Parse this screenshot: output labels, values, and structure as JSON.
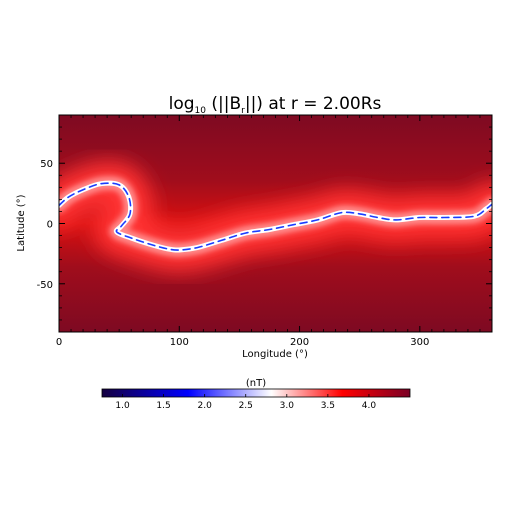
{
  "chart_data": {
    "type": "heatmap",
    "title_main": "log",
    "title_sub": "10",
    "title_open": " (||B",
    "title_r": "r",
    "title_rest": "||) at r = 2.00Rs",
    "xlabel": "Longitude (°)",
    "ylabel": "Latitude (°)",
    "xlim": [
      0,
      360
    ],
    "ylim": [
      -90,
      90
    ],
    "x_ticks": [
      0,
      100,
      200,
      300
    ],
    "y_ticks": [
      -50,
      0,
      50
    ],
    "neutral_line": [
      {
        "lon": 0,
        "lat": 15
      },
      {
        "lon": 8,
        "lat": 22
      },
      {
        "lon": 20,
        "lat": 28
      },
      {
        "lon": 35,
        "lat": 33
      },
      {
        "lon": 50,
        "lat": 32
      },
      {
        "lon": 58,
        "lat": 22
      },
      {
        "lon": 59,
        "lat": 8
      },
      {
        "lon": 52,
        "lat": -2
      },
      {
        "lon": 48,
        "lat": -7
      },
      {
        "lon": 60,
        "lat": -12
      },
      {
        "lon": 75,
        "lat": -17
      },
      {
        "lon": 90,
        "lat": -21
      },
      {
        "lon": 100,
        "lat": -22
      },
      {
        "lon": 115,
        "lat": -20
      },
      {
        "lon": 135,
        "lat": -14
      },
      {
        "lon": 155,
        "lat": -8
      },
      {
        "lon": 175,
        "lat": -5
      },
      {
        "lon": 195,
        "lat": -1
      },
      {
        "lon": 215,
        "lat": 3
      },
      {
        "lon": 235,
        "lat": 9
      },
      {
        "lon": 250,
        "lat": 8
      },
      {
        "lon": 265,
        "lat": 5
      },
      {
        "lon": 280,
        "lat": 3
      },
      {
        "lon": 300,
        "lat": 5
      },
      {
        "lon": 320,
        "lat": 5
      },
      {
        "lon": 345,
        "lat": 6
      },
      {
        "lon": 355,
        "lat": 12
      },
      {
        "lon": 360,
        "lat": 16
      }
    ],
    "colorbar": {
      "label": "(nT)",
      "min": 0.75,
      "max": 4.5,
      "ticks": [
        1.0,
        1.5,
        2.0,
        2.5,
        3.0,
        3.5,
        4.0
      ],
      "tick_labels": [
        "1.0",
        "1.5",
        "2.0",
        "2.5",
        "3.0",
        "3.5",
        "4.0"
      ],
      "colors": [
        "#150040",
        "#0000ff",
        "#ffffff",
        "#ff0000",
        "#7a0025"
      ]
    }
  }
}
